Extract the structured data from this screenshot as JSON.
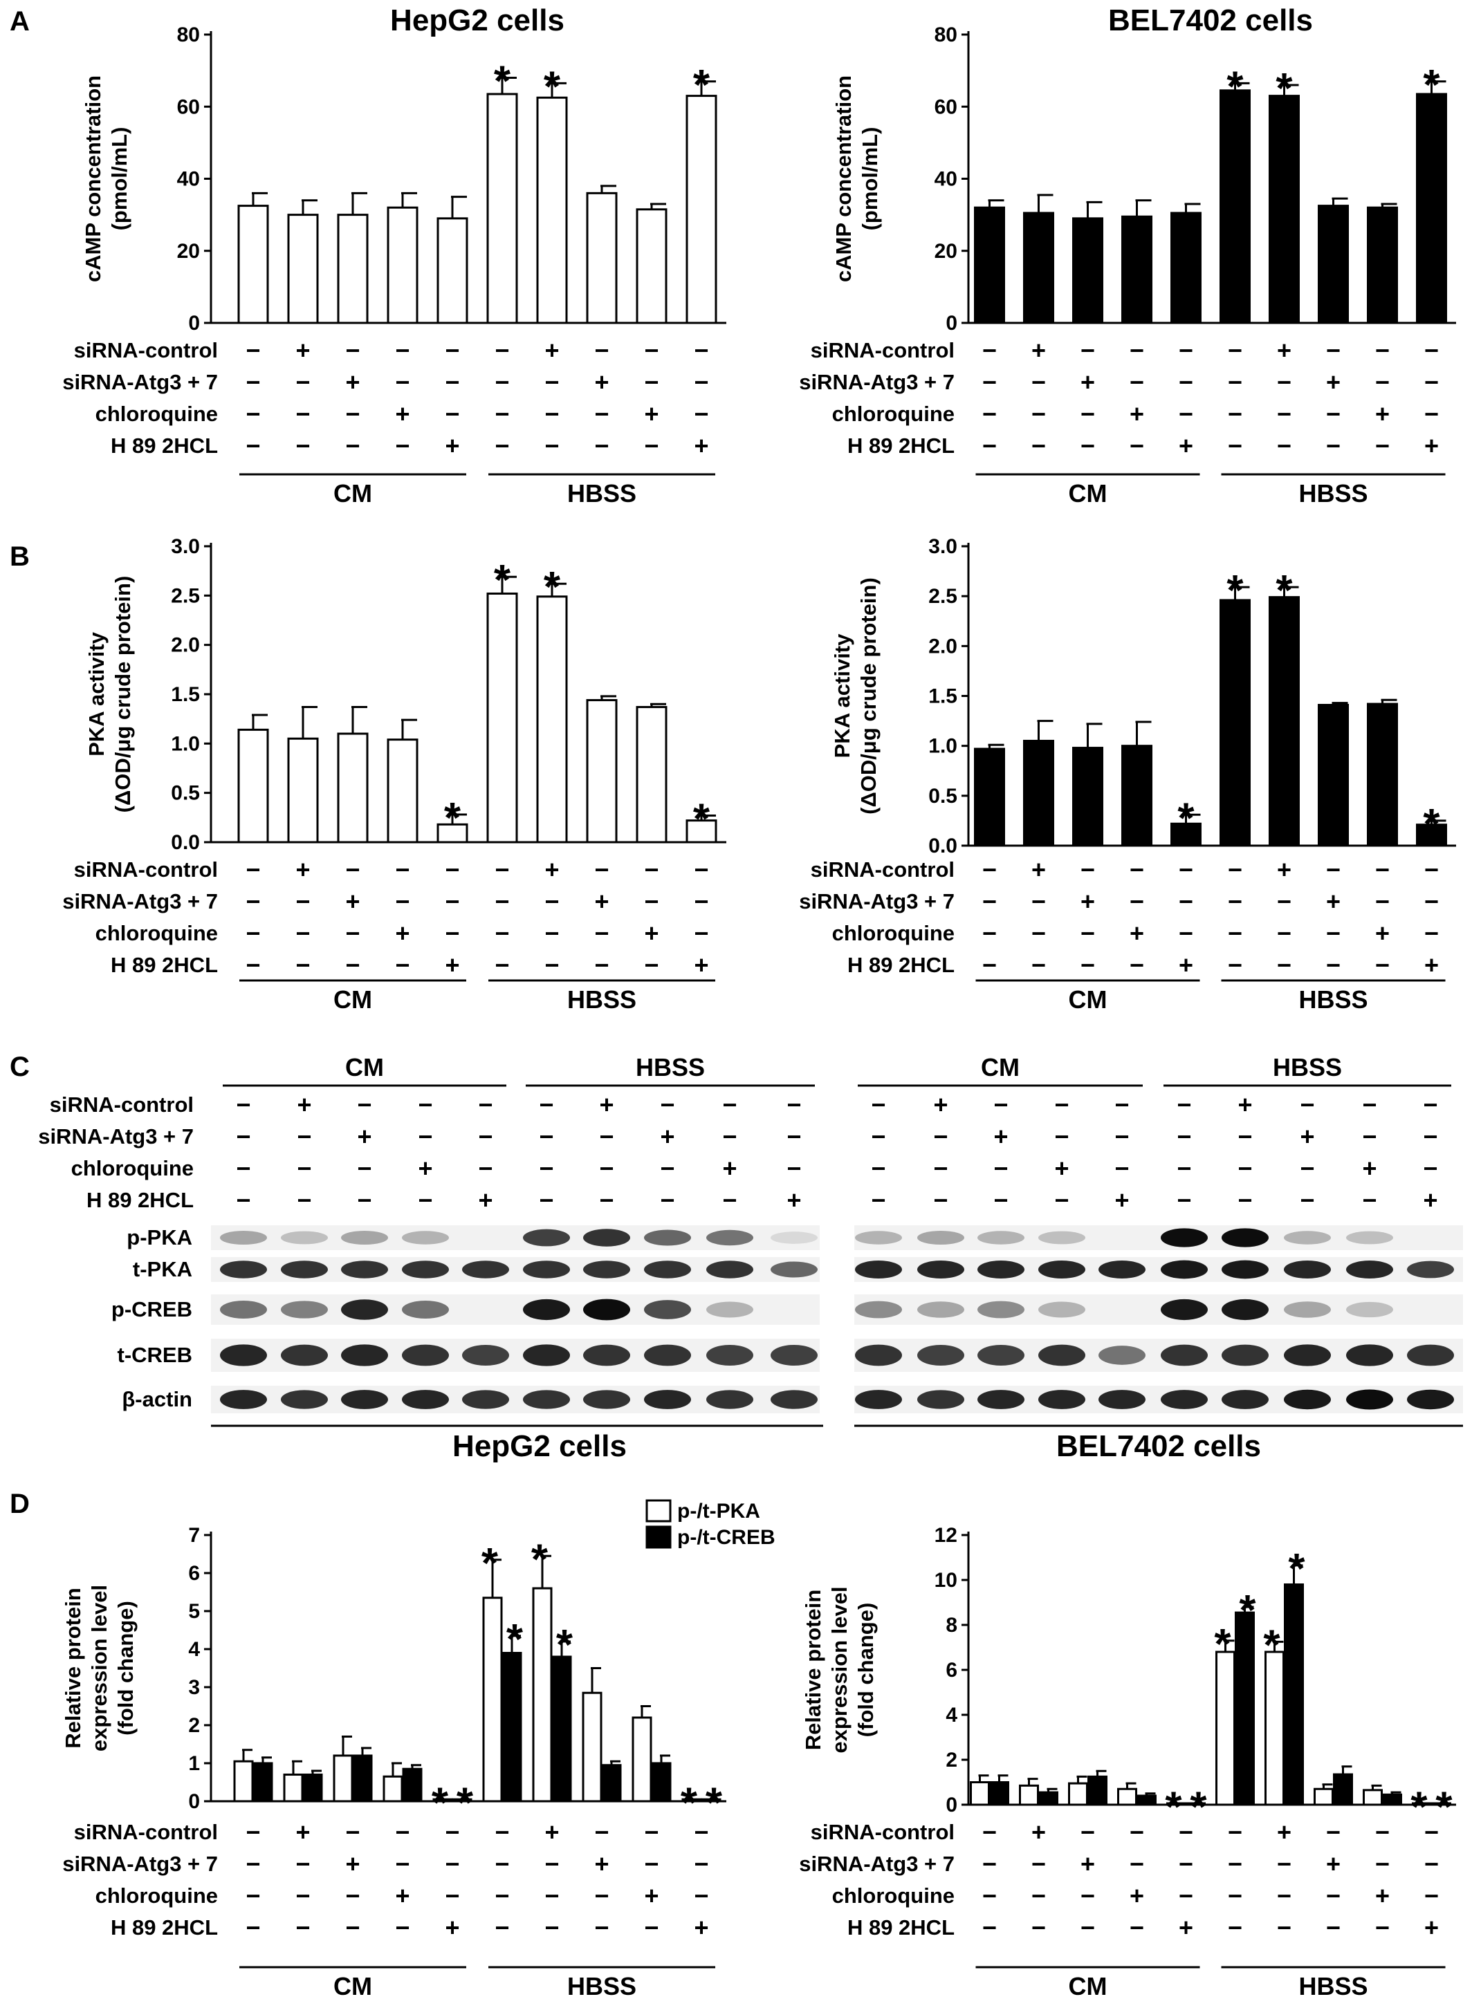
{
  "panels": {
    "A": "A",
    "B": "B",
    "C": "C",
    "D": "D"
  },
  "conditions": [
    "siRNA-control",
    "siRNA-Atg3 + 7",
    "chloroquine",
    "H 89 2HCL"
  ],
  "signs": [
    [
      "−",
      "+",
      "−",
      "−",
      "−",
      "−",
      "+",
      "−",
      "−",
      "−"
    ],
    [
      "−",
      "−",
      "+",
      "−",
      "−",
      "−",
      "−",
      "+",
      "−",
      "−"
    ],
    [
      "−",
      "−",
      "−",
      "+",
      "−",
      "−",
      "−",
      "−",
      "+",
      "−"
    ],
    [
      "−",
      "−",
      "−",
      "−",
      "+",
      "−",
      "−",
      "−",
      "−",
      "+"
    ]
  ],
  "groups": [
    "CM",
    "HBSS"
  ],
  "colors": {
    "hepg2_bar": "#ffffff",
    "bel_bar": "#000000",
    "creb_bar": "#000000",
    "pka_bar": "#ffffff"
  },
  "star_symbol": "*",
  "blot": {
    "rows": [
      "p-PKA",
      "t-PKA",
      "p-CREB",
      "t-CREB",
      "β-actin"
    ],
    "cells": [
      "HepG2 cells",
      "BEL7402 cells"
    ],
    "intensity": {
      "hepg2": [
        [
          0.35,
          0.25,
          0.35,
          0.3,
          0.0,
          0.75,
          0.8,
          0.6,
          0.55,
          0.15
        ],
        [
          0.8,
          0.8,
          0.8,
          0.8,
          0.8,
          0.8,
          0.8,
          0.8,
          0.8,
          0.6
        ],
        [
          0.55,
          0.5,
          0.85,
          0.55,
          0.0,
          0.9,
          0.95,
          0.7,
          0.3,
          0.0
        ],
        [
          0.85,
          0.8,
          0.85,
          0.8,
          0.75,
          0.85,
          0.8,
          0.8,
          0.75,
          0.75
        ],
        [
          0.85,
          0.8,
          0.85,
          0.85,
          0.8,
          0.8,
          0.8,
          0.85,
          0.8,
          0.8
        ]
      ],
      "bel7402": [
        [
          0.3,
          0.35,
          0.3,
          0.25,
          0.0,
          0.95,
          0.95,
          0.3,
          0.25,
          0.0
        ],
        [
          0.85,
          0.85,
          0.85,
          0.85,
          0.85,
          0.9,
          0.9,
          0.85,
          0.85,
          0.75
        ],
        [
          0.45,
          0.35,
          0.45,
          0.3,
          0.0,
          0.9,
          0.9,
          0.35,
          0.25,
          0.0
        ],
        [
          0.8,
          0.75,
          0.75,
          0.8,
          0.55,
          0.8,
          0.8,
          0.85,
          0.85,
          0.8
        ],
        [
          0.85,
          0.8,
          0.85,
          0.85,
          0.85,
          0.85,
          0.85,
          0.9,
          0.95,
          0.9
        ]
      ]
    }
  },
  "chart_data": [
    {
      "panel": "A",
      "type": "bar",
      "title": "HepG2 cells",
      "ylabel_line1": "cAMP concentration",
      "ylabel_line2": "(pmol/mL)",
      "ylim": [
        0,
        80
      ],
      "yticks": [
        0,
        20,
        40,
        60,
        80
      ],
      "fill": "#ffffff",
      "series": [
        {
          "values": [
            32.5,
            30,
            30,
            32,
            29,
            63.5,
            62.5,
            36,
            31.5,
            63
          ],
          "errors": [
            3.5,
            4,
            6,
            4,
            6,
            4.5,
            4,
            2,
            1.5,
            4
          ],
          "significant": [
            false,
            false,
            false,
            false,
            false,
            true,
            true,
            false,
            false,
            true
          ]
        }
      ]
    },
    {
      "panel": "A",
      "type": "bar",
      "title": "BEL7402 cells",
      "ylabel_line1": "cAMP concentration",
      "ylabel_line2": "(pmol/mL)",
      "ylim": [
        0,
        80
      ],
      "yticks": [
        0,
        20,
        40,
        60,
        80
      ],
      "fill": "#000000",
      "series": [
        {
          "values": [
            32,
            30.5,
            29,
            29.5,
            30.5,
            64.5,
            63,
            32.5,
            32,
            63.5
          ],
          "errors": [
            2,
            5,
            4.5,
            4.5,
            2.5,
            2,
            3,
            2,
            1,
            3.5
          ],
          "significant": [
            false,
            false,
            false,
            false,
            false,
            true,
            true,
            false,
            false,
            true
          ]
        }
      ]
    },
    {
      "panel": "B",
      "type": "bar",
      "title": "",
      "ylabel_line1": "PKA activity",
      "ylabel_line2": "(ΔOD/μg crude protein)",
      "ylim": [
        0,
        3.0
      ],
      "yticks": [
        "0.0",
        "0.5",
        "1.0",
        "1.5",
        "2.0",
        "2.5",
        "3.0"
      ],
      "fill": "#ffffff",
      "series": [
        {
          "values": [
            1.14,
            1.05,
            1.1,
            1.04,
            0.18,
            2.52,
            2.49,
            1.44,
            1.37,
            0.22
          ],
          "errors": [
            0.15,
            0.32,
            0.27,
            0.2,
            0.1,
            0.17,
            0.13,
            0.04,
            0.03,
            0.05
          ],
          "significant": [
            false,
            false,
            false,
            false,
            true,
            true,
            true,
            false,
            false,
            true
          ]
        }
      ]
    },
    {
      "panel": "B",
      "type": "bar",
      "title": "",
      "ylabel_line1": "PKA activity",
      "ylabel_line2": "(ΔOD/μg crude protein)",
      "ylim": [
        0,
        3.0
      ],
      "yticks": [
        "0.0",
        "0.5",
        "1.0",
        "1.5",
        "2.0",
        "2.5",
        "3.0"
      ],
      "fill": "#000000",
      "series": [
        {
          "values": [
            0.97,
            1.05,
            0.98,
            1.0,
            0.22,
            2.46,
            2.49,
            1.41,
            1.42,
            0.21
          ],
          "errors": [
            0.04,
            0.2,
            0.24,
            0.24,
            0.09,
            0.13,
            0.1,
            0.02,
            0.04,
            0.04
          ],
          "significant": [
            false,
            false,
            false,
            false,
            true,
            true,
            true,
            false,
            false,
            true
          ]
        }
      ]
    },
    {
      "panel": "D",
      "type": "bar",
      "title": "",
      "ylabel_line1": "Relative protein",
      "ylabel_line2": "expression level",
      "ylabel_line3": "(fold change)",
      "ylim": [
        0,
        7
      ],
      "yticks": [
        0,
        1,
        2,
        3,
        4,
        5,
        6,
        7
      ],
      "legend": [
        "p-/t-PKA",
        "p-/t-CREB"
      ],
      "series": [
        {
          "name": "p-/t-PKA",
          "fill": "#ffffff",
          "values": [
            1.05,
            0.7,
            1.2,
            0.65,
            0.05,
            5.35,
            5.6,
            2.85,
            2.2,
            0.05
          ],
          "errors": [
            0.3,
            0.35,
            0.5,
            0.35,
            0,
            1.0,
            0.85,
            0.65,
            0.3,
            0
          ],
          "significant": [
            false,
            false,
            false,
            false,
            true,
            true,
            true,
            false,
            false,
            true
          ]
        },
        {
          "name": "p-/t-CREB",
          "fill": "#000000",
          "values": [
            1.0,
            0.7,
            1.2,
            0.85,
            0.05,
            3.9,
            3.8,
            0.95,
            1.0,
            0.05
          ],
          "errors": [
            0.15,
            0.1,
            0.2,
            0.1,
            0,
            0.45,
            0.4,
            0.1,
            0.2,
            0
          ],
          "significant": [
            false,
            false,
            false,
            false,
            true,
            true,
            true,
            false,
            false,
            true
          ]
        }
      ]
    },
    {
      "panel": "D",
      "type": "bar",
      "title": "",
      "ylabel_line1": "Relative protein",
      "ylabel_line2": "expression level",
      "ylabel_line3": "(fold change)",
      "ylim": [
        0,
        12
      ],
      "yticks": [
        0,
        2,
        4,
        6,
        8,
        10,
        12
      ],
      "series": [
        {
          "name": "p-/t-PKA",
          "fill": "#ffffff",
          "values": [
            1.0,
            0.85,
            0.95,
            0.7,
            0.05,
            6.8,
            6.8,
            0.7,
            0.65,
            0.05
          ],
          "errors": [
            0.3,
            0.3,
            0.3,
            0.25,
            0,
            0.5,
            0.45,
            0.2,
            0.2,
            0
          ],
          "significant": [
            false,
            false,
            false,
            false,
            true,
            true,
            true,
            false,
            false,
            true
          ]
        },
        {
          "name": "p-/t-CREB",
          "fill": "#000000",
          "values": [
            1.0,
            0.55,
            1.25,
            0.4,
            0.05,
            8.55,
            9.8,
            1.35,
            0.45,
            0.05
          ],
          "errors": [
            0.3,
            0.15,
            0.25,
            0.1,
            0,
            0.25,
            0.85,
            0.35,
            0.1,
            0
          ],
          "significant": [
            false,
            false,
            false,
            false,
            true,
            true,
            true,
            false,
            false,
            true
          ]
        }
      ]
    }
  ]
}
